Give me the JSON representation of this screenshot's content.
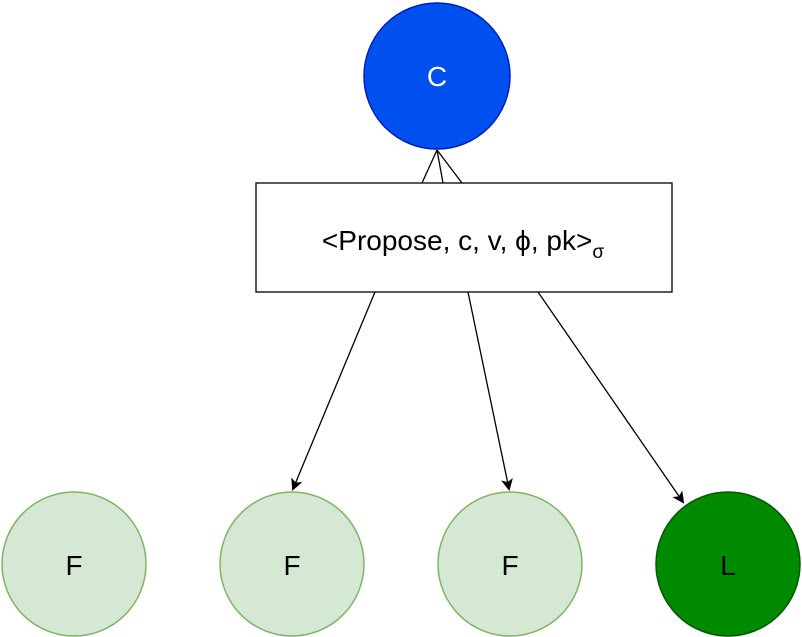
{
  "client": {
    "label": "C",
    "fill": "#0050EF",
    "stroke": "#001DBC",
    "text_color": "#FFFFFF"
  },
  "message": {
    "text": "<Propose, c, v, ϕ, pk>",
    "subscript": "σ"
  },
  "replicas": [
    {
      "label": "F",
      "role": "follower",
      "fill": "#D5E8D4",
      "stroke": "#82B366",
      "text_color": "#000000"
    },
    {
      "label": "F",
      "role": "follower",
      "fill": "#D5E8D4",
      "stroke": "#82B366",
      "text_color": "#000000"
    },
    {
      "label": "F",
      "role": "follower",
      "fill": "#D5E8D4",
      "stroke": "#82B366",
      "text_color": "#000000"
    },
    {
      "label": "L",
      "role": "leader",
      "fill": "#008A00",
      "stroke": "#005700",
      "text_color": "#000000"
    }
  ]
}
